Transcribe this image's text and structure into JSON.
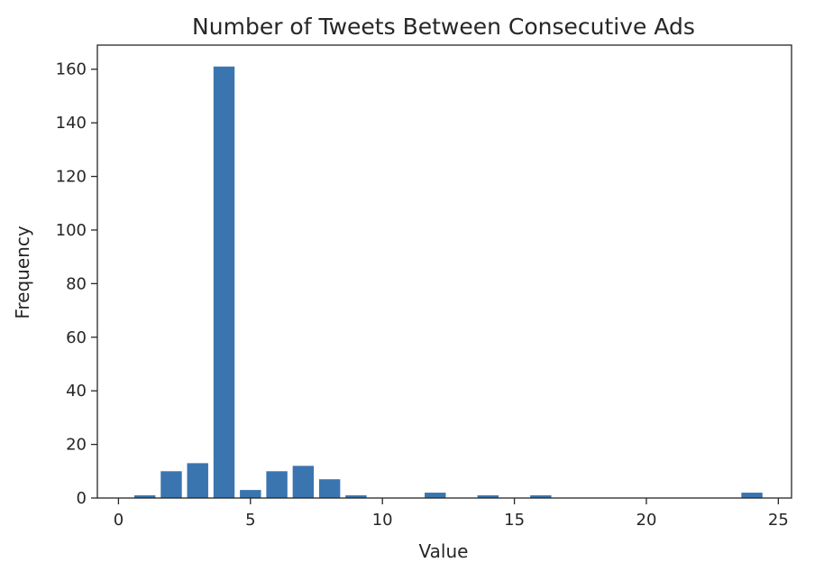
{
  "chart_data": {
    "type": "bar",
    "title": "Number of Tweets Between Consecutive Ads",
    "xlabel": "Value",
    "ylabel": "Frequency",
    "xlim": [
      -0.8,
      25.5
    ],
    "ylim": [
      0,
      169
    ],
    "xticks": [
      0,
      5,
      10,
      15,
      20,
      25
    ],
    "yticks": [
      0,
      20,
      40,
      60,
      80,
      100,
      120,
      140,
      160
    ],
    "bar_width": 0.8,
    "bar_color": "#3a75b0",
    "x": [
      1,
      2,
      3,
      4,
      5,
      6,
      7,
      8,
      9,
      12,
      14,
      16,
      24
    ],
    "values": [
      1,
      10,
      13,
      161,
      3,
      10,
      12,
      7,
      1,
      2,
      1,
      1,
      2
    ],
    "grid": false,
    "legend": "none"
  }
}
